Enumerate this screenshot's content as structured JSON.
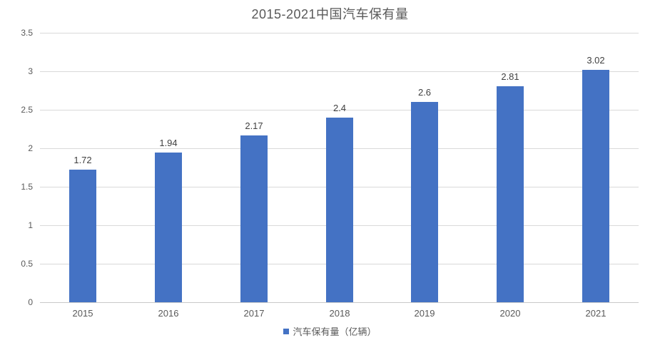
{
  "chart_data": {
    "type": "bar",
    "title": "2015-2021中国汽车保有量",
    "categories": [
      "2015",
      "2016",
      "2017",
      "2018",
      "2019",
      "2020",
      "2021"
    ],
    "series": [
      {
        "name": "汽车保有量（亿辆）",
        "values": [
          1.72,
          1.94,
          2.17,
          2.4,
          2.6,
          2.81,
          3.02
        ],
        "data_labels": [
          "1.72",
          "1.94",
          "2.17",
          "2.4",
          "2.6",
          "2.81",
          "3.02"
        ]
      }
    ],
    "xlabel": "",
    "ylabel": "",
    "ylim": [
      0,
      3.5
    ],
    "yticks": [
      "0",
      "0.5",
      "1",
      "1.5",
      "2",
      "2.5",
      "3",
      "3.5"
    ],
    "grid": true,
    "legend_position": "bottom",
    "colors": {
      "bar": "#4472C4",
      "gridline": "#d9d9d9",
      "axis_line": "#c9c9c9",
      "title_text": "#595959",
      "axis_text": "#595959",
      "data_label_text": "#404040"
    }
  }
}
